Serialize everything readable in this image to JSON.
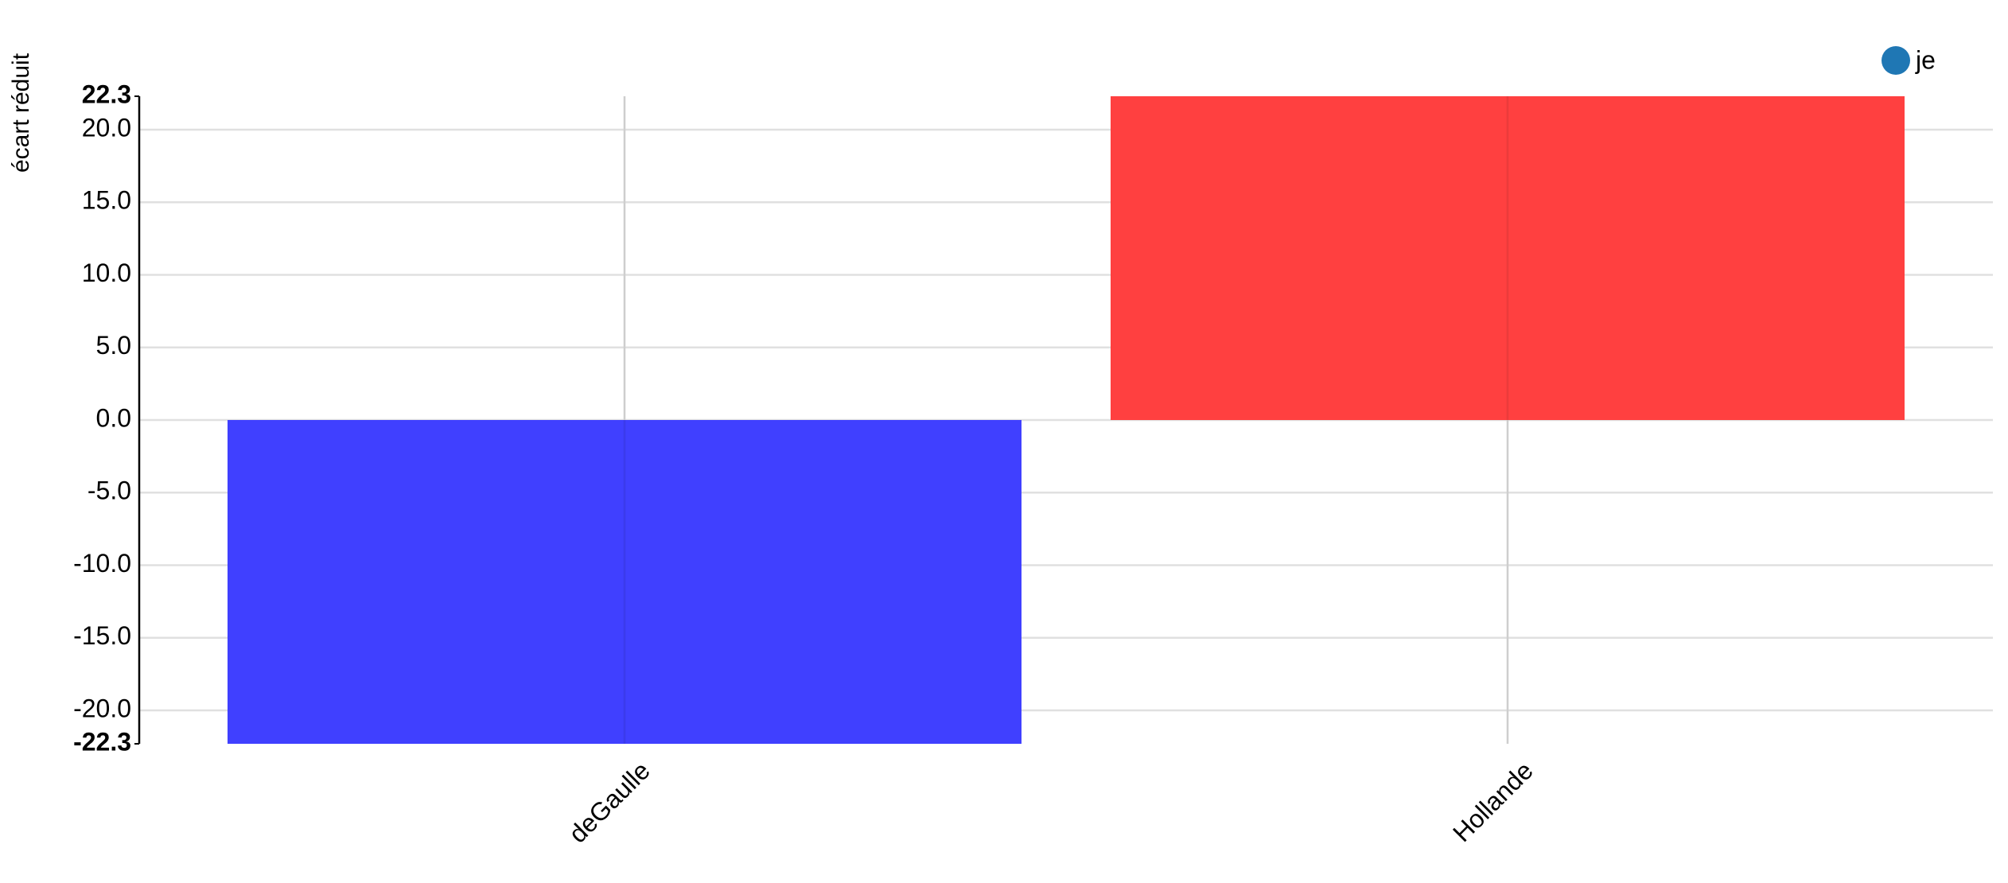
{
  "chart_data": {
    "type": "bar",
    "y_label": "écart réduit",
    "categories": [
      "deGaulle",
      "Hollande"
    ],
    "series": [
      {
        "name": "je",
        "color": "#1f77b4",
        "values": [
          -22.3,
          22.3
        ]
      }
    ],
    "bar_colors": [
      "#4040ff",
      "#ff4040"
    ],
    "ylim": [
      -22.3,
      22.3
    ],
    "yticks": [
      -22.3,
      {
        "value": -20,
        "label": "-20.0"
      },
      {
        "value": -15,
        "label": "-15.0"
      },
      {
        "value": -10,
        "label": "-10.0"
      },
      {
        "value": -5,
        "label": "-5.0"
      },
      {
        "value": 0,
        "label": "0.0"
      },
      {
        "value": 5,
        "label": "5.0"
      },
      {
        "value": 10,
        "label": "10.0"
      },
      {
        "value": 15,
        "label": "15.0"
      },
      {
        "value": 20,
        "label": "20.0"
      },
      22.3
    ],
    "grid": true,
    "legend": "top-right"
  }
}
